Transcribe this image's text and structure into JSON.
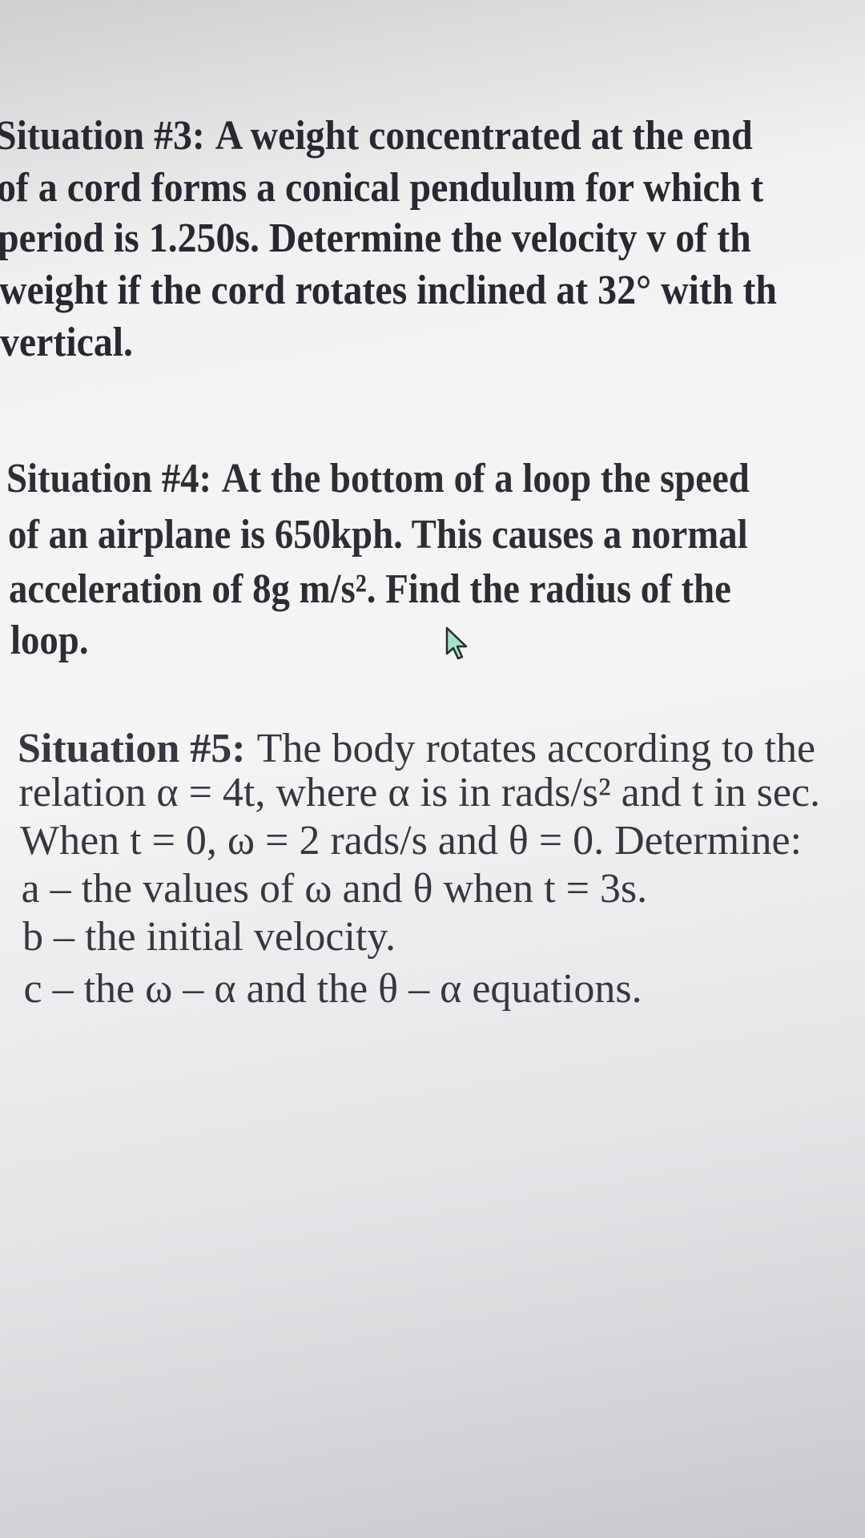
{
  "situations": [
    {
      "label": "Situation #3:",
      "lines": [
        "A weight concentrated at the end",
        "of a cord forms a conical pendulum for which t",
        "period is 1.250s. Determine the velocity v of th",
        "weight if the cord rotates inclined at 32° with th",
        "vertical."
      ]
    },
    {
      "label": "Situation #4:",
      "lines": [
        "At the bottom of a loop the speed",
        "of an airplane is 650kph. This causes a normal",
        "acceleration of 8g m/s². Find the radius of the",
        "loop."
      ]
    },
    {
      "label": "Situation #5:",
      "lines": [
        "The body rotates according to the",
        "relation α = 4t, where α is in rads/s² and t in sec.",
        "When t = 0, ω = 2 rads/s and θ = 0. Determine:",
        "a – the values of ω and θ when t = 3s.",
        "b – the initial velocity.",
        "c – the ω – α and the θ – α equations."
      ]
    }
  ]
}
